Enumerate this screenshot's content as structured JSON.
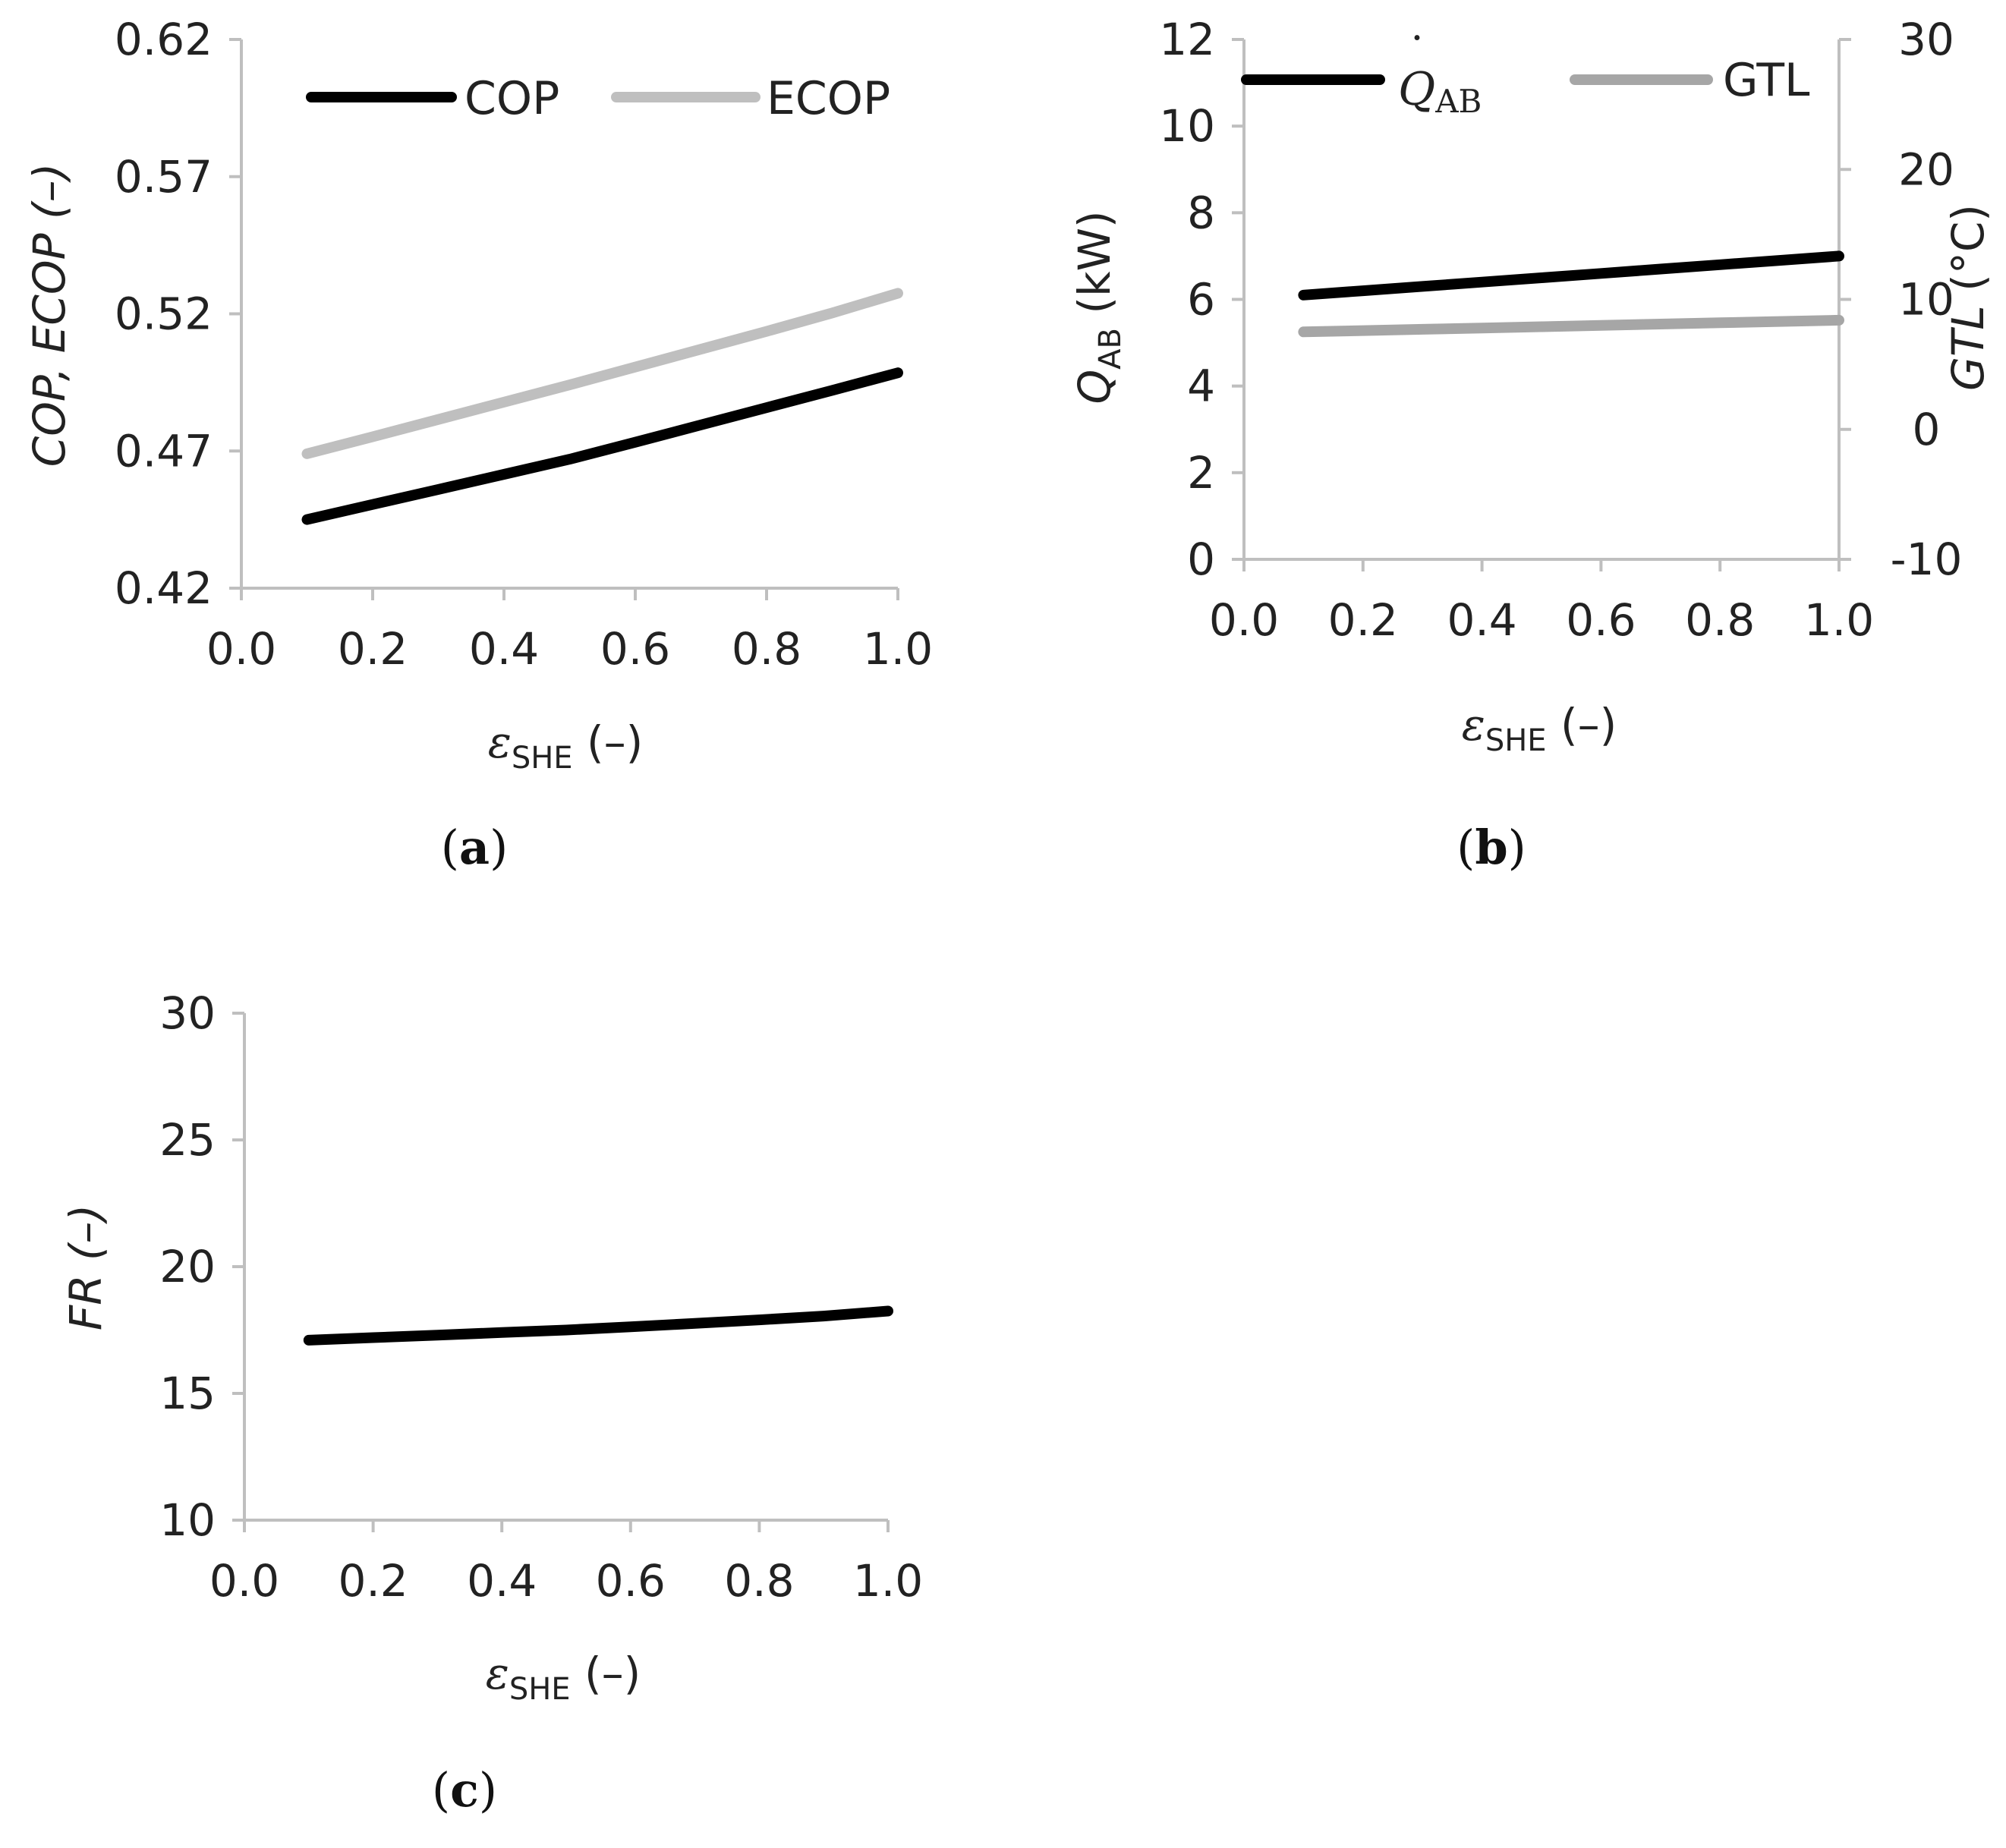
{
  "colors": {
    "black": "#000000",
    "light_gray": "#bfbfbf",
    "mid_gray": "#a6a6a6",
    "axis": "#bfbfbf"
  },
  "chart_data": [
    {
      "id": "a",
      "type": "line",
      "caption": {
        "open": "(",
        "letter": "a",
        "close": ")"
      },
      "x": [
        0.1,
        0.2,
        0.3,
        0.4,
        0.5,
        0.6,
        0.7,
        0.8,
        0.9,
        1.0
      ],
      "xlim": [
        0.0,
        1.0
      ],
      "xticks": [
        "0.0",
        "0.2",
        "0.4",
        "0.6",
        "0.8",
        "1.0"
      ],
      "ylim": [
        0.42,
        0.62
      ],
      "yticks": [
        "0.42",
        "0.47",
        "0.52",
        "0.57",
        "0.62"
      ],
      "xlabel": {
        "symbol": "ε",
        "sub": "SHE",
        "rest": " (–)"
      },
      "ylabel": "COP, ECOP (–)",
      "legend": [
        "COP",
        "ECOP"
      ],
      "series": [
        {
          "name": "COP",
          "color": "#000000",
          "values": [
            0.445,
            0.4505,
            0.456,
            0.4615,
            0.467,
            0.4732,
            0.4795,
            0.4858,
            0.4921,
            0.4985
          ]
        },
        {
          "name": "ECOP",
          "color": "#bfbfbf",
          "values": [
            0.469,
            0.4752,
            0.4815,
            0.4878,
            0.4941,
            0.5006,
            0.5071,
            0.5136,
            0.5203,
            0.5275
          ]
        }
      ]
    },
    {
      "id": "b",
      "type": "line",
      "caption": {
        "open": "(",
        "letter": "b",
        "close": ")"
      },
      "x": [
        0.1,
        0.2,
        0.3,
        0.4,
        0.5,
        0.6,
        0.7,
        0.8,
        0.9,
        1.0
      ],
      "xlim": [
        0.0,
        1.0
      ],
      "xticks": [
        "0.0",
        "0.2",
        "0.4",
        "0.6",
        "0.8",
        "1.0"
      ],
      "ylim": [
        0,
        12
      ],
      "yticks": [
        "0",
        "2",
        "4",
        "6",
        "8",
        "10",
        "12"
      ],
      "y2lim": [
        -10,
        30
      ],
      "y2ticks": [
        "-10",
        "0",
        "10",
        "20",
        "30"
      ],
      "xlabel": {
        "symbol": "ε",
        "sub": "SHE",
        "rest": " (–)"
      },
      "ylabel": {
        "symbol": "Q",
        "sub": "AB",
        "rest": " (kW)"
      },
      "y2label": {
        "symbol": "GTL",
        "rest": " (°C)"
      },
      "legend": [
        {
          "symbol": "Q",
          "dot": "˙",
          "sub": "AB"
        },
        {
          "text": "GTL"
        }
      ],
      "series": [
        {
          "name": "Q_AB",
          "axis": "left",
          "color": "#000000",
          "values": [
            6.1,
            6.2,
            6.3,
            6.4,
            6.5,
            6.6,
            6.7,
            6.8,
            6.9,
            7.0
          ]
        },
        {
          "name": "GTL",
          "axis": "right",
          "color": "#a6a6a6",
          "values": [
            7.5,
            7.6,
            7.7,
            7.8,
            7.9,
            8.0,
            8.1,
            8.2,
            8.3,
            8.4
          ]
        }
      ]
    },
    {
      "id": "c",
      "type": "line",
      "caption": {
        "open": "(",
        "letter": "c",
        "close": ")"
      },
      "x": [
        0.1,
        0.2,
        0.3,
        0.4,
        0.5,
        0.6,
        0.7,
        0.8,
        0.9,
        1.0
      ],
      "xlim": [
        0.0,
        1.0
      ],
      "xticks": [
        "0.0",
        "0.2",
        "0.4",
        "0.6",
        "0.8",
        "1.0"
      ],
      "ylim": [
        10,
        30
      ],
      "yticks": [
        "10",
        "15",
        "20",
        "25",
        "30"
      ],
      "xlabel": {
        "symbol": "ε",
        "sub": "SHE",
        "rest": " (–)"
      },
      "ylabel": "FR (–)",
      "series": [
        {
          "name": "FR",
          "color": "#000000",
          "values": [
            17.1,
            17.2,
            17.3,
            17.4,
            17.5,
            17.63,
            17.76,
            17.9,
            18.05,
            18.25
          ]
        }
      ]
    }
  ]
}
